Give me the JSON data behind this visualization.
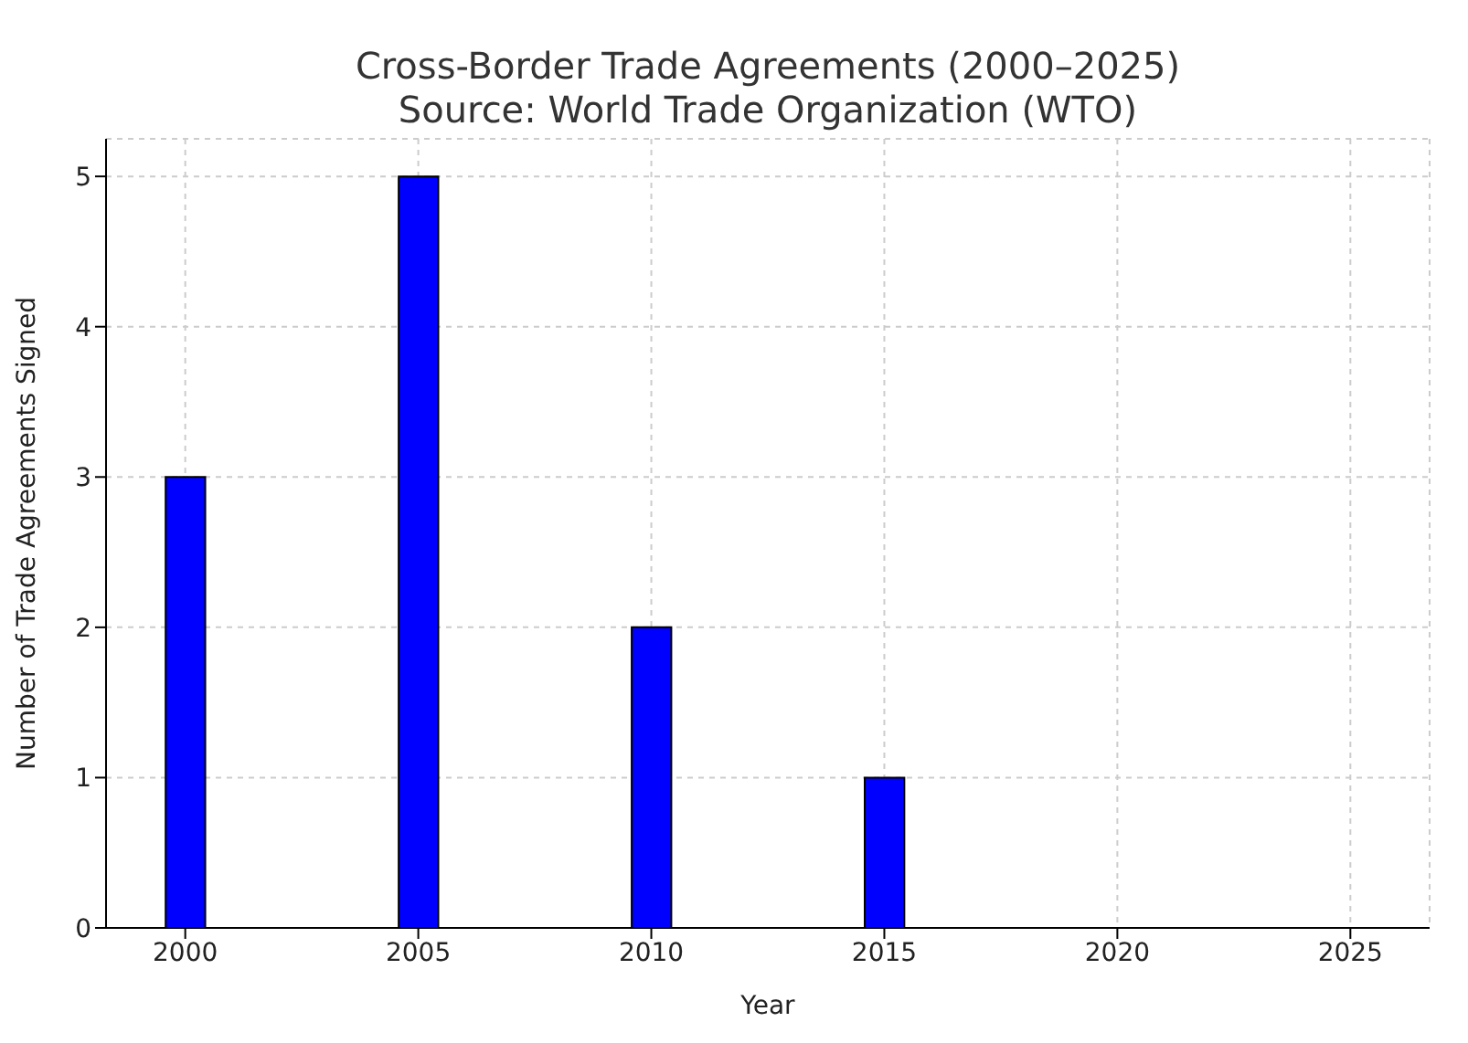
{
  "chart_data": {
    "type": "bar",
    "title": "Cross-Border Trade Agreements (2000–2025)",
    "subtitle": "Source: World Trade Organization (WTO)",
    "xlabel": "Year",
    "ylabel": "Number of Trade Agreements Signed",
    "x": [
      2000,
      2005,
      2010,
      2015
    ],
    "values": [
      3,
      5,
      2,
      1
    ],
    "color": "#0000ff",
    "xlim": [
      1998.3,
      2026.7
    ],
    "xticks": [
      2000,
      2005,
      2010,
      2015,
      2020,
      2025
    ],
    "ylim": [
      0,
      5.25
    ],
    "yticks": [
      0,
      1,
      2,
      3,
      4,
      5
    ],
    "grid": true
  }
}
